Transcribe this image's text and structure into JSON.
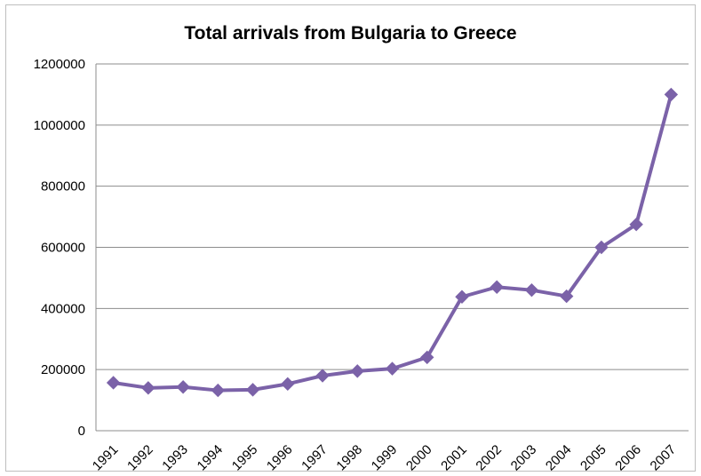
{
  "chart_data": {
    "type": "line",
    "title": "Total arrivals from Bulgaria to Greece",
    "xlabel": "",
    "ylabel": "",
    "categories": [
      "1991",
      "1992",
      "1993",
      "1994",
      "1995",
      "1996",
      "1997",
      "1998",
      "1999",
      "2000",
      "2001",
      "2002",
      "2003",
      "2004",
      "2005",
      "2006",
      "2007"
    ],
    "series": [
      {
        "values": [
          157000,
          140000,
          143000,
          132000,
          134000,
          153000,
          180000,
          195000,
          203000,
          240000,
          438000,
          470000,
          460000,
          440000,
          600000,
          675000,
          1100000
        ],
        "color": "#7b62a8"
      }
    ],
    "ylim": [
      0,
      1200000
    ],
    "yticks": [
      "0",
      "200000",
      "400000",
      "600000",
      "800000",
      "1000000",
      "1200000"
    ],
    "grid": true,
    "marker": "diamond",
    "legend": "none"
  }
}
